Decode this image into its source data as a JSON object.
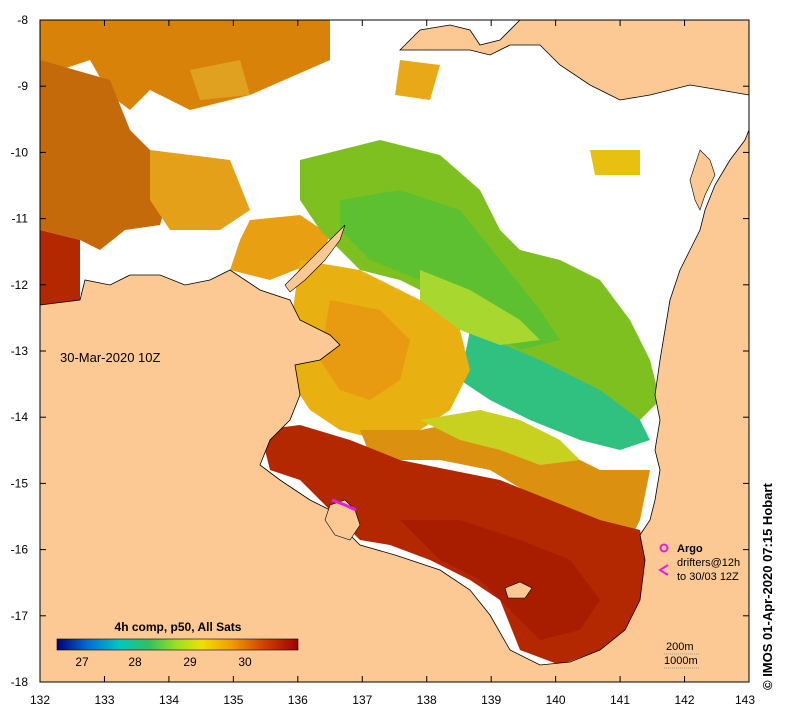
{
  "map": {
    "date_label": "30-Mar-2020 10Z",
    "credit": "© IMOS 01-Apr-2020 07:15 Hobart",
    "x_ticks": [
      "132",
      "133",
      "134",
      "135",
      "136",
      "137",
      "138",
      "139",
      "140",
      "141",
      "142",
      "143"
    ],
    "y_ticks": [
      "-8",
      "-9",
      "-10",
      "-11",
      "-12",
      "-13",
      "-14",
      "-15",
      "-16",
      "-17",
      "-18"
    ],
    "colors": {
      "land": "#fcc995",
      "no_data": "#ffffff",
      "coastline": "#000000"
    }
  },
  "colorbar": {
    "title": "4h comp, p50, All Sats",
    "ticks": [
      "27",
      "28",
      "29",
      "30"
    ],
    "stops": [
      "#00007a",
      "#0070d8",
      "#00c8c0",
      "#30c060",
      "#a0e020",
      "#f0e000",
      "#f0a000",
      "#d04000",
      "#a00000"
    ]
  },
  "legend": {
    "argo_label": "Argo",
    "drifters_label": "drifters@12h",
    "drifters_period": "to 30/03 12Z",
    "argo_color": "#e020e0",
    "drifter_color": "#e020e0"
  },
  "contours": {
    "line1": "200m",
    "line2": "1000m"
  }
}
